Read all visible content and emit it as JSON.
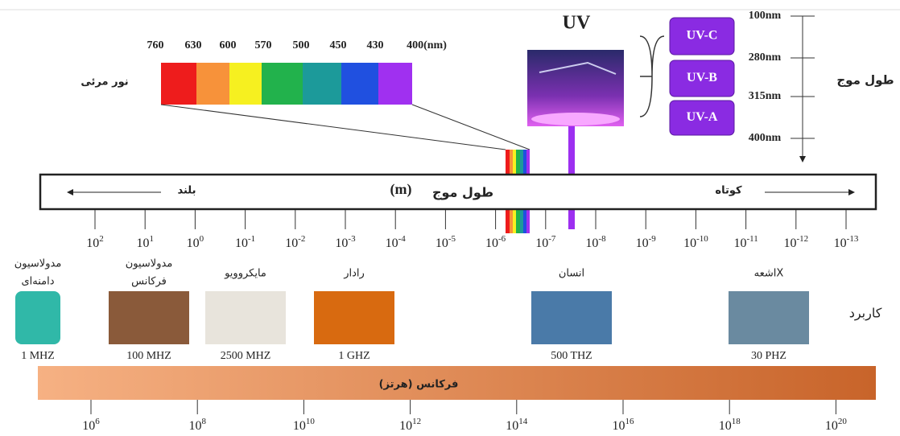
{
  "visible_light": {
    "label": "نور مرئی",
    "wavelengths": [
      "760",
      "630",
      "600",
      "570",
      "500",
      "450",
      "430",
      "400(nm)"
    ]
  },
  "uv": {
    "title": "UV",
    "bands": [
      "UV-C",
      "UV-B",
      "UV-A"
    ],
    "wavelengths": [
      "100nm",
      "280nm",
      "315nm",
      "400nm"
    ],
    "axis_label": "طول موج"
  },
  "wavelength_bar": {
    "long": "بلند",
    "label": "طول موج",
    "unit": "(m)",
    "short": "کوتاه",
    "ticks": [
      {
        "base": "10",
        "exp": "2"
      },
      {
        "base": "10",
        "exp": "1"
      },
      {
        "base": "10",
        "exp": "0"
      },
      {
        "base": "10",
        "exp": "-1"
      },
      {
        "base": "10",
        "exp": "-2"
      },
      {
        "base": "10",
        "exp": "-3"
      },
      {
        "base": "10",
        "exp": "-4"
      },
      {
        "base": "10",
        "exp": "-5"
      },
      {
        "base": "10",
        "exp": "-6"
      },
      {
        "base": "10",
        "exp": "-7"
      },
      {
        "base": "10",
        "exp": "-8"
      },
      {
        "base": "10",
        "exp": "-9"
      },
      {
        "base": "10",
        "exp": "-10"
      },
      {
        "base": "10",
        "exp": "-11"
      },
      {
        "base": "10",
        "exp": "-12"
      },
      {
        "base": "10",
        "exp": "-13"
      }
    ]
  },
  "applications": {
    "label": "کاربرد",
    "items": [
      {
        "name": [
          "مدولاسیون",
          "دامنه‌ای"
        ],
        "frequency": "1 MHZ"
      },
      {
        "name": [
          "مدولاسیون",
          "فرکانس"
        ],
        "frequency": "100 MHZ"
      },
      {
        "name": [
          "مایکروویو"
        ],
        "frequency": "2500 MHZ"
      },
      {
        "name": [
          "رادار"
        ],
        "frequency": "1 GHZ"
      },
      {
        "name": [
          "انسان"
        ],
        "frequency": "500 THZ"
      },
      {
        "name": [
          "اشعهX"
        ],
        "frequency": "30 PHZ"
      }
    ]
  },
  "frequency_bar": {
    "label": "فرکانس (هرتز)",
    "ticks": [
      {
        "base": "10",
        "exp": "6"
      },
      {
        "base": "10",
        "exp": "8"
      },
      {
        "base": "10",
        "exp": "10"
      },
      {
        "base": "10",
        "exp": "12"
      },
      {
        "base": "10",
        "exp": "14"
      },
      {
        "base": "10",
        "exp": "16"
      },
      {
        "base": "10",
        "exp": "18"
      },
      {
        "base": "10",
        "exp": "20"
      }
    ]
  }
}
